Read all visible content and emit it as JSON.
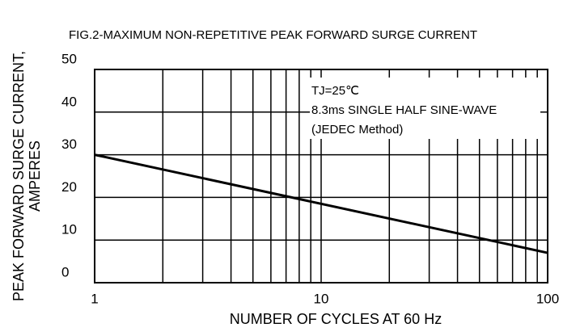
{
  "chart_data": {
    "type": "line",
    "title": "FIG.2-MAXIMUM NON-REPETITIVE PEAK FORWARD SURGE CURRENT",
    "xlabel": "NUMBER OF CYCLES AT 60 Hz",
    "ylabel": [
      "PEAK FORWARD SURGE CURRENT,",
      "AMPERES"
    ],
    "annotations": [
      "TJ=25℃",
      "8.3ms SINGLE HALF SINE-WAVE",
      "(JEDEC Method)"
    ],
    "x": [
      1,
      100
    ],
    "series": [
      {
        "color": "#000000",
        "values": [
          30,
          7
        ]
      }
    ],
    "xlim": [
      1,
      100
    ],
    "xticks": [
      1,
      10,
      100
    ],
    "xminor": [
      2,
      3,
      4,
      5,
      6,
      7,
      8,
      9,
      20,
      30,
      40,
      50,
      60,
      70,
      80,
      90
    ],
    "xscale": "log",
    "ylim": [
      0,
      50
    ],
    "yticks": [
      0,
      10,
      20,
      30,
      40,
      50
    ],
    "grid": true
  }
}
